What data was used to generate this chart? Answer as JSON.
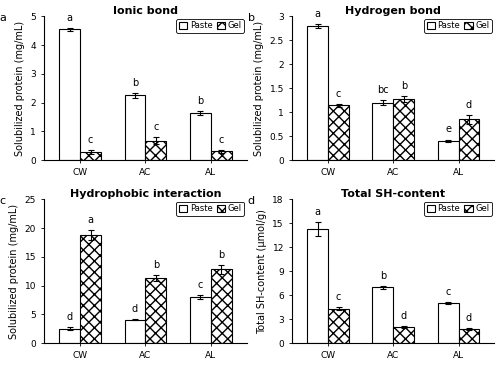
{
  "panels": [
    {
      "label": "a",
      "title": "Ionic bond",
      "ylabel": "Solubilized protein (mg/mL)",
      "ylim": [
        0,
        5
      ],
      "yticks": [
        0,
        1,
        2,
        3,
        4,
        5
      ],
      "groups": [
        "CW",
        "AC",
        "AL"
      ],
      "paste_values": [
        4.55,
        2.25,
        1.65
      ],
      "paste_errors": [
        0.05,
        0.08,
        0.07
      ],
      "gel_values": [
        0.28,
        0.68,
        0.3
      ],
      "gel_errors": [
        0.06,
        0.12,
        0.06
      ],
      "paste_letters": [
        "a",
        "b",
        "b"
      ],
      "gel_letters": [
        "c",
        "c",
        "c"
      ]
    },
    {
      "label": "b",
      "title": "Hydrogen bond",
      "ylabel": "Solubilized protein (mg/mL)",
      "ylim": [
        0,
        3.0
      ],
      "yticks": [
        0.0,
        0.5,
        1.0,
        1.5,
        2.0,
        2.5,
        3.0
      ],
      "groups": [
        "CW",
        "AC",
        "AL"
      ],
      "paste_values": [
        2.8,
        1.2,
        0.4
      ],
      "paste_errors": [
        0.04,
        0.05,
        0.03
      ],
      "gel_values": [
        1.14,
        1.27,
        0.85
      ],
      "gel_errors": [
        0.04,
        0.06,
        0.1
      ],
      "paste_letters": [
        "a",
        "bc",
        "e"
      ],
      "gel_letters": [
        "c",
        "b",
        "d"
      ]
    },
    {
      "label": "c",
      "title": "Hydrophobic interaction",
      "ylabel": "Solubilized protein (mg/mL)",
      "ylim": [
        0,
        25
      ],
      "yticks": [
        0,
        5,
        10,
        15,
        20,
        25
      ],
      "groups": [
        "CW",
        "AC",
        "AL"
      ],
      "paste_values": [
        2.5,
        4.1,
        8.0
      ],
      "paste_errors": [
        0.3,
        0.15,
        0.4
      ],
      "gel_values": [
        18.8,
        11.3,
        12.8
      ],
      "gel_errors": [
        0.8,
        0.5,
        0.7
      ],
      "paste_letters": [
        "d",
        "d",
        "c"
      ],
      "gel_letters": [
        "a",
        "b",
        "b"
      ]
    },
    {
      "label": "d",
      "title": "Total SH-content",
      "ylabel": "Total SH-content (μmol/g)",
      "ylim": [
        0,
        18
      ],
      "yticks": [
        0,
        3,
        6,
        9,
        12,
        15,
        18
      ],
      "groups": [
        "CW",
        "AC",
        "AL"
      ],
      "paste_values": [
        14.3,
        7.0,
        5.0
      ],
      "paste_errors": [
        0.9,
        0.2,
        0.15
      ],
      "gel_values": [
        4.3,
        2.0,
        1.8
      ],
      "gel_errors": [
        0.2,
        0.15,
        0.1
      ],
      "paste_letters": [
        "a",
        "b",
        "c"
      ],
      "gel_letters": [
        "c",
        "d",
        "d"
      ]
    }
  ],
  "paste_color": "#ffffff",
  "gel_color": "#ffffff",
  "paste_hatch": "",
  "gel_hatch": "xxx",
  "bar_width": 0.32,
  "bar_edge_color": "#000000",
  "bar_linewidth": 0.8,
  "legend_labels": [
    "Paste",
    "Gel"
  ],
  "font_size": 7,
  "title_font_size": 8,
  "letter_font_size": 7,
  "tick_font_size": 6.5
}
